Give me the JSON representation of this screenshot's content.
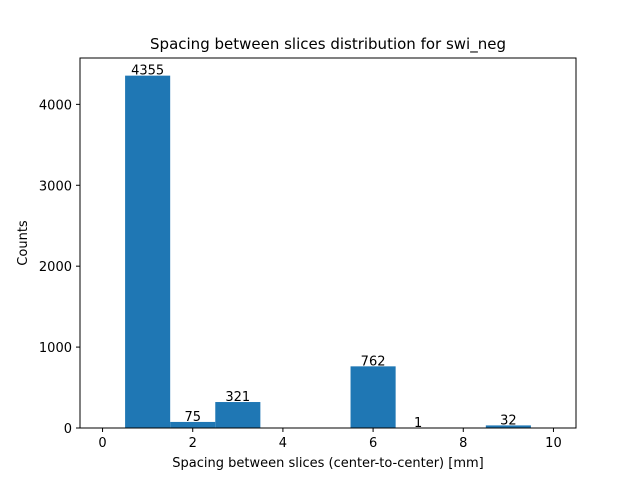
{
  "chart_data": {
    "type": "bar",
    "title": "Spacing between slices distribution for swi_neg",
    "xlabel": "Spacing between slices (center-to-center) [mm]",
    "ylabel": "Counts",
    "bars": [
      {
        "x0": 0.5,
        "x1": 1.5,
        "value": 4355,
        "label": "4355"
      },
      {
        "x0": 1.5,
        "x1": 2.5,
        "value": 75,
        "label": "75"
      },
      {
        "x0": 2.5,
        "x1": 3.5,
        "value": 321,
        "label": "321"
      },
      {
        "x0": 5.5,
        "x1": 6.5,
        "value": 762,
        "label": "762"
      },
      {
        "x0": 6.5,
        "x1": 7.5,
        "value": 1,
        "label": "1"
      },
      {
        "x0": 8.5,
        "x1": 9.5,
        "value": 32,
        "label": "32"
      }
    ],
    "xlim": [
      -0.5,
      10.5
    ],
    "ylim": [
      0,
      4573
    ],
    "xticks": [
      0,
      2,
      4,
      6,
      8,
      10
    ],
    "yticks": [
      0,
      1000,
      2000,
      3000,
      4000
    ],
    "bar_color": "#1f77b4",
    "grid": false
  }
}
